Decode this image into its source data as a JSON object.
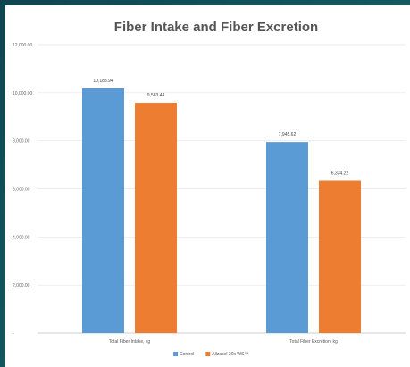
{
  "chart_data": {
    "type": "bar",
    "title": "Fiber Intake and Fiber Excretion",
    "xlabel": "",
    "ylabel": "",
    "categories": [
      "Total Fiber Intake, kg",
      "Total Fiber Excretion, kg"
    ],
    "series": [
      {
        "name": "Control",
        "color": "#5b9bd5",
        "values": [
          10183.94,
          7945.62
        ],
        "labels": [
          "10,183.94",
          "7,945.62"
        ]
      },
      {
        "name": "Allzacel 20x WS™",
        "color": "#ed7d31",
        "values": [
          9583.44,
          6334.22
        ],
        "labels": [
          "9,583.44",
          "6,334.22"
        ]
      }
    ],
    "ylim": [
      0,
      12000
    ],
    "yticks": [
      {
        "value": 0,
        "label": "-"
      },
      {
        "value": 2000,
        "label": "2,000.00"
      },
      {
        "value": 4000,
        "label": "4,000.00"
      },
      {
        "value": 6000,
        "label": "6,000.00"
      },
      {
        "value": 8000,
        "label": "8,000.00"
      },
      {
        "value": 10000,
        "label": "10,000.00"
      },
      {
        "value": 12000,
        "label": "12,000.00"
      }
    ],
    "grid": true,
    "legend_position": "bottom"
  },
  "colors": {
    "background": "#0f4a4f",
    "plot_background": "#ffffff"
  }
}
